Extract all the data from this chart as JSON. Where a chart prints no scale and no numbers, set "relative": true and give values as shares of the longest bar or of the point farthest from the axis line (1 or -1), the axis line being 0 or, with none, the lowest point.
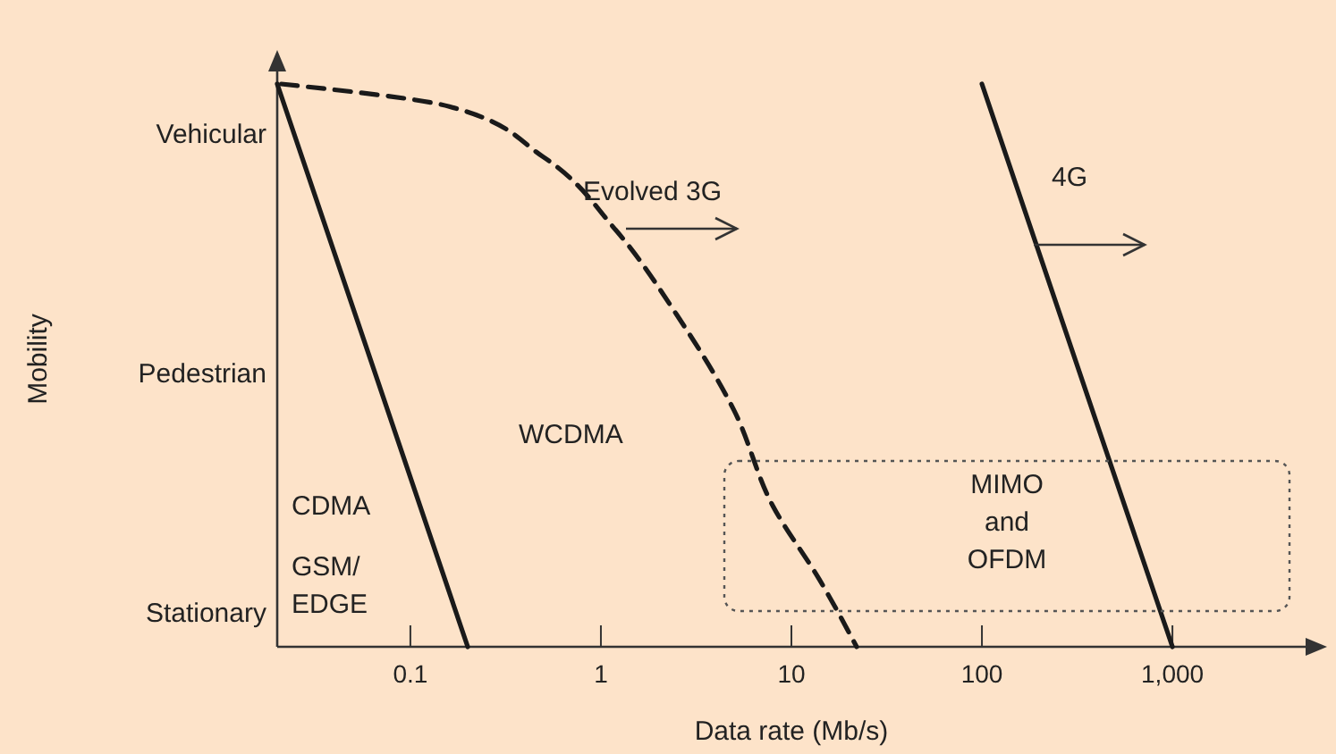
{
  "chart_data": {
    "type": "line",
    "relative": true,
    "xlabel": "Data rate (Mb/s)",
    "log": "x",
    "xlim": [
      0.02,
      5000
    ],
    "xticks": [
      0.1,
      1,
      10,
      100,
      {
        "value": 1000,
        "label": "1,000"
      }
    ],
    "marker": "none",
    "series": [
      {
        "color": "#1a1a1a",
        "line_style": "solid",
        "x": [
          0.02,
          0.2
        ],
        "values": [
          1,
          0
        ]
      },
      {
        "color": "#1a1a1a",
        "line_style": "dashed",
        "x": [
          0.021,
          0.16,
          0.5,
          1.2,
          2.5,
          5,
          8,
          14,
          22
        ],
        "values": [
          1,
          0.96,
          0.87,
          0.74,
          0.59,
          0.42,
          0.25,
          0.12,
          0
        ]
      },
      {
        "color": "#1a1a1a",
        "line_style": "solid",
        "x": [
          100,
          1000
        ],
        "values": [
          1,
          0
        ]
      }
    ],
    "annotations": [
      "Evolved 3G",
      "4G",
      "WCDMA",
      "CDMA",
      "GSM/\nEDGE",
      "MIMO\nand\nOFDM",
      "Vehicular",
      "Pedestrian",
      "Stationary",
      "Mobility"
    ]
  }
}
